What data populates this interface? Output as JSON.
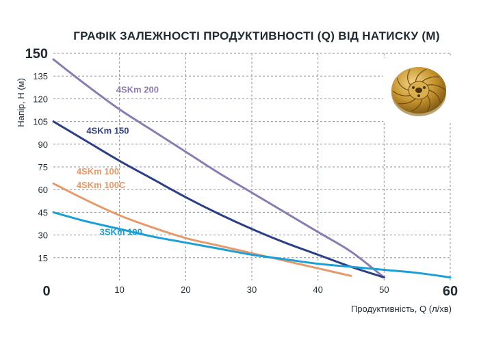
{
  "chart_data": {
    "type": "line",
    "title": "ГРАФІК ЗАЛЕЖНОСТІ ПРОДУКТИВНОСТІ (Q) ВІД НАТИСКУ (М)",
    "xlabel": "Продуктивність, Q (л/хв)",
    "ylabel": "Напір, Н (м)",
    "xlim": [
      0,
      60
    ],
    "ylim": [
      0,
      150
    ],
    "x_ticks": [
      {
        "value": 0,
        "label": "0",
        "big": true
      },
      {
        "value": 10,
        "label": "10",
        "big": false
      },
      {
        "value": 20,
        "label": "20",
        "big": false
      },
      {
        "value": 30,
        "label": "30",
        "big": false
      },
      {
        "value": 40,
        "label": "40",
        "big": false
      },
      {
        "value": 50,
        "label": "50",
        "big": false
      },
      {
        "value": 60,
        "label": "60",
        "big": true
      }
    ],
    "y_ticks": [
      {
        "value": 15,
        "label": "15",
        "big": false
      },
      {
        "value": 30,
        "label": "30",
        "big": false
      },
      {
        "value": 45,
        "label": "45",
        "big": false
      },
      {
        "value": 60,
        "label": "60",
        "big": false
      },
      {
        "value": 75,
        "label": "75",
        "big": false
      },
      {
        "value": 90,
        "label": "90",
        "big": false
      },
      {
        "value": 105,
        "label": "105",
        "big": false
      },
      {
        "value": 120,
        "label": "120",
        "big": false
      },
      {
        "value": 135,
        "label": "135",
        "big": false
      },
      {
        "value": 150,
        "label": "150",
        "big": true
      }
    ],
    "grid": true,
    "series": [
      {
        "name": "4SKm 200",
        "color": "#8a7bb3",
        "label_at": [
          9.5,
          124
        ],
        "points": [
          [
            0,
            146
          ],
          [
            5,
            129
          ],
          [
            10,
            113
          ],
          [
            15,
            99
          ],
          [
            20,
            85
          ],
          [
            25,
            71
          ],
          [
            30,
            58
          ],
          [
            35,
            45
          ],
          [
            40,
            32
          ],
          [
            45,
            19
          ],
          [
            50,
            2
          ]
        ]
      },
      {
        "name": "4SKm 150",
        "color": "#2b3f86",
        "label_at": [
          5,
          97
        ],
        "points": [
          [
            0,
            105
          ],
          [
            5,
            92
          ],
          [
            10,
            79
          ],
          [
            15,
            67
          ],
          [
            20,
            55
          ],
          [
            25,
            44
          ],
          [
            30,
            34
          ],
          [
            35,
            25
          ],
          [
            40,
            17
          ],
          [
            45,
            9
          ],
          [
            50,
            2
          ]
        ]
      },
      {
        "name": "4SKm 100",
        "color": "#e69a6a",
        "label_at": [
          3.5,
          70
        ],
        "points": [
          [
            0,
            64
          ],
          [
            5,
            53
          ],
          [
            10,
            43
          ],
          [
            15,
            35
          ],
          [
            20,
            28
          ],
          [
            25,
            23
          ],
          [
            30,
            18
          ],
          [
            35,
            13
          ],
          [
            40,
            8
          ],
          [
            45,
            3
          ]
        ]
      },
      {
        "name": "4SKm 100C",
        "color": "#e69a6a",
        "label_at": [
          3.5,
          61
        ],
        "points": []
      },
      {
        "name": "3SKm 100",
        "color": "#1a9fd6",
        "label_at": [
          7,
          30
        ],
        "points": [
          [
            0,
            45
          ],
          [
            5,
            39
          ],
          [
            10,
            34
          ],
          [
            15,
            29
          ],
          [
            20,
            25
          ],
          [
            25,
            21
          ],
          [
            30,
            17
          ],
          [
            35,
            14
          ],
          [
            40,
            11
          ],
          [
            45,
            9
          ],
          [
            50,
            7
          ],
          [
            55,
            5
          ],
          [
            60,
            2
          ]
        ]
      }
    ],
    "image": "impeller-icon"
  }
}
